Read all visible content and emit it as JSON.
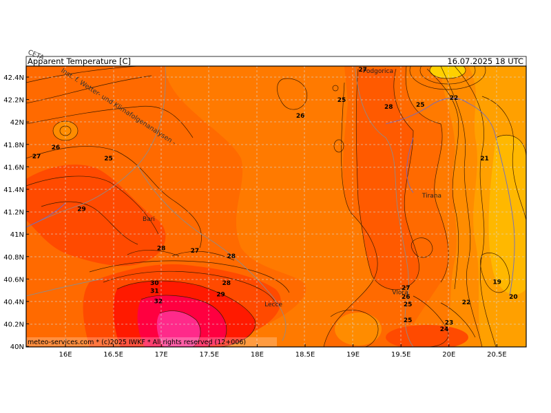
{
  "header": {
    "model": "CETA",
    "title": "Apparent Temperature [C]",
    "valid_time": "16.07.2025 18 UTC"
  },
  "watermark": "Inst. f. Wetter- und Klimafolgenanalysen -",
  "footer": "meteo-services.com * (c)2025 IWKF * All rights reserved (12+006)",
  "axes": {
    "y_ticks": [
      "42.4N",
      "42.2N",
      "42N",
      "41.8N",
      "41.6N",
      "41.4N",
      "41.2N",
      "41N",
      "40.8N",
      "40.6N",
      "40.4N",
      "40.2N",
      "40N"
    ],
    "x_ticks": [
      "16E",
      "16.5E",
      "17E",
      "17.5E",
      "18E",
      "18.5E",
      "19E",
      "19.5E",
      "20E",
      "20.5E"
    ],
    "lat_range": [
      40.0,
      42.5
    ],
    "lon_range": [
      15.6,
      20.8
    ]
  },
  "cities": [
    {
      "name": "Bari",
      "lon": 16.87,
      "lat": 41.12
    },
    {
      "name": "Lecce",
      "lon": 18.17,
      "lat": 40.36
    },
    {
      "name": "Podgorica",
      "lon": 19.26,
      "lat": 42.44
    },
    {
      "name": "Tirana",
      "lon": 19.82,
      "lat": 41.33
    },
    {
      "name": "Vlora",
      "lon": 19.49,
      "lat": 40.47
    }
  ],
  "contour_labels": [
    {
      "text": "27",
      "lon": 19.1,
      "lat": 42.45
    },
    {
      "text": "25",
      "lon": 18.88,
      "lat": 42.18
    },
    {
      "text": "26",
      "lon": 18.45,
      "lat": 42.04
    },
    {
      "text": "28",
      "lon": 19.37,
      "lat": 42.12
    },
    {
      "text": "25",
      "lon": 19.7,
      "lat": 42.14
    },
    {
      "text": "22",
      "lon": 20.05,
      "lat": 42.2
    },
    {
      "text": "26",
      "lon": 15.9,
      "lat": 41.76
    },
    {
      "text": "27",
      "lon": 15.7,
      "lat": 41.68
    },
    {
      "text": "25",
      "lon": 16.45,
      "lat": 41.66
    },
    {
      "text": "21",
      "lon": 20.37,
      "lat": 41.66
    },
    {
      "text": "29",
      "lon": 16.17,
      "lat": 41.21
    },
    {
      "text": "28",
      "lon": 17.0,
      "lat": 40.86
    },
    {
      "text": "27",
      "lon": 17.35,
      "lat": 40.84
    },
    {
      "text": "28",
      "lon": 17.73,
      "lat": 40.79
    },
    {
      "text": "30",
      "lon": 16.93,
      "lat": 40.55
    },
    {
      "text": "31",
      "lon": 16.93,
      "lat": 40.48
    },
    {
      "text": "32",
      "lon": 16.97,
      "lat": 40.39
    },
    {
      "text": "28",
      "lon": 17.68,
      "lat": 40.55
    },
    {
      "text": "29",
      "lon": 17.62,
      "lat": 40.45
    },
    {
      "text": "27",
      "lon": 19.55,
      "lat": 40.51
    },
    {
      "text": "26",
      "lon": 19.55,
      "lat": 40.43
    },
    {
      "text": "25",
      "lon": 19.57,
      "lat": 40.36
    },
    {
      "text": "25",
      "lon": 19.57,
      "lat": 40.22
    },
    {
      "text": "19",
      "lon": 20.5,
      "lat": 40.56
    },
    {
      "text": "20",
      "lon": 20.67,
      "lat": 40.43
    },
    {
      "text": "22",
      "lon": 20.18,
      "lat": 40.38
    },
    {
      "text": "23",
      "lon": 20.0,
      "lat": 40.2
    },
    {
      "text": "24",
      "lon": 19.95,
      "lat": 40.14
    }
  ],
  "colors": {
    "bg": "#ff7a00",
    "t19": "#ffb800",
    "t21": "#ffa000",
    "t24": "#ff8c00",
    "t26": "#ff6a00",
    "t28": "#ff4a00",
    "t30": "#ff1a00",
    "t32": "#ff0040",
    "t34": "#ff2a8a",
    "coast": "#888888",
    "border": "#6a6acc"
  }
}
